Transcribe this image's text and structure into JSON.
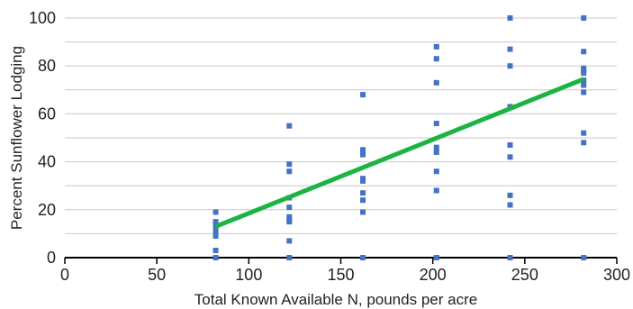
{
  "chart_data": {
    "type": "scatter",
    "title": "",
    "xlabel": "Total Known Available N, pounds per acre",
    "ylabel": "Percent Sunflower Lodging",
    "xlim": [
      0,
      300
    ],
    "ylim": [
      0,
      100
    ],
    "x_ticks": [
      0,
      50,
      100,
      150,
      200,
      250,
      300
    ],
    "y_ticks": [
      0,
      20,
      40,
      60,
      80,
      100
    ],
    "grid": true,
    "legend": "none",
    "colors": {
      "points": "#4472c4",
      "trendline": "#1db344",
      "grid": "#c8c8c8",
      "axis": "#000000"
    },
    "series": [
      {
        "x": [
          82,
          82,
          82,
          82,
          82,
          82,
          82,
          82,
          82,
          82,
          122,
          122,
          122,
          122,
          122,
          122,
          122,
          122,
          122,
          122,
          162,
          162,
          162,
          162,
          162,
          162,
          162,
          162,
          162,
          162,
          162,
          202,
          202,
          202,
          202,
          202,
          202,
          202,
          202,
          202,
          202,
          242,
          242,
          242,
          242,
          242,
          242,
          242,
          242,
          242,
          242,
          282,
          282,
          282,
          282,
          282,
          282,
          282,
          282,
          282,
          282,
          282
        ],
        "y": [
          19,
          15,
          14,
          12,
          10,
          9,
          3,
          0,
          0,
          0,
          55,
          39,
          36,
          25,
          21,
          17,
          16,
          15,
          7,
          0,
          68,
          45,
          44,
          43,
          33,
          32,
          27,
          24,
          19,
          0,
          0,
          88,
          83,
          73,
          56,
          46,
          44,
          36,
          28,
          0,
          0,
          100,
          87,
          80,
          63,
          47,
          42,
          26,
          22,
          0,
          0,
          100,
          86,
          79,
          78,
          77,
          74,
          72,
          69,
          52,
          48,
          0
        ]
      },
      {
        "type": "line",
        "x": [
          82,
          282
        ],
        "y": [
          13,
          74.5
        ]
      }
    ]
  }
}
